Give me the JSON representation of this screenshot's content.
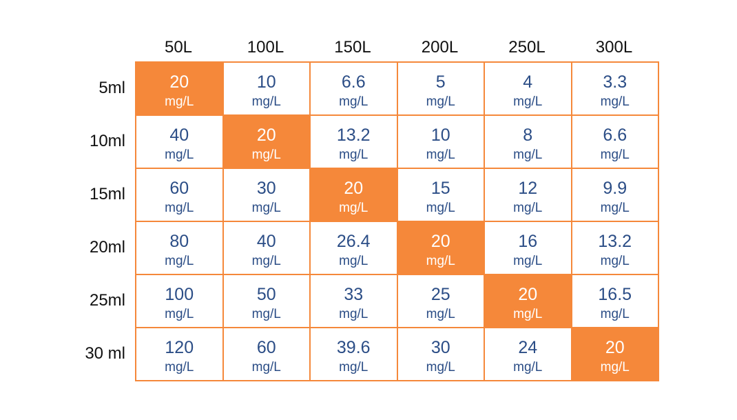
{
  "chart_data": {
    "type": "table",
    "columns": [
      "50L",
      "100L",
      "150L",
      "200L",
      "250L",
      "300L"
    ],
    "rows": [
      "5ml",
      "10ml",
      "15ml",
      "20ml",
      "25ml",
      "30 ml"
    ],
    "unit": "mg/L",
    "values": [
      [
        "20",
        "10",
        "6.6",
        "5",
        "4",
        "3.3"
      ],
      [
        "40",
        "20",
        "13.2",
        "10",
        "8",
        "6.6"
      ],
      [
        "60",
        "30",
        "20",
        "15",
        "12",
        "9.9"
      ],
      [
        "80",
        "40",
        "26.4",
        "20",
        "16",
        "13.2"
      ],
      [
        "100",
        "50",
        "33",
        "25",
        "20",
        "16.5"
      ],
      [
        "120",
        "60",
        "39.6",
        "30",
        "24",
        "20"
      ]
    ],
    "highlighted": [
      [
        0,
        0
      ],
      [
        1,
        1
      ],
      [
        2,
        2
      ],
      [
        3,
        3
      ],
      [
        4,
        4
      ],
      [
        5,
        5
      ]
    ]
  },
  "colors": {
    "accent": "#f5883a",
    "value_text": "#2b4d86",
    "header_text": "#111111",
    "highlight_text": "#ffffff"
  }
}
